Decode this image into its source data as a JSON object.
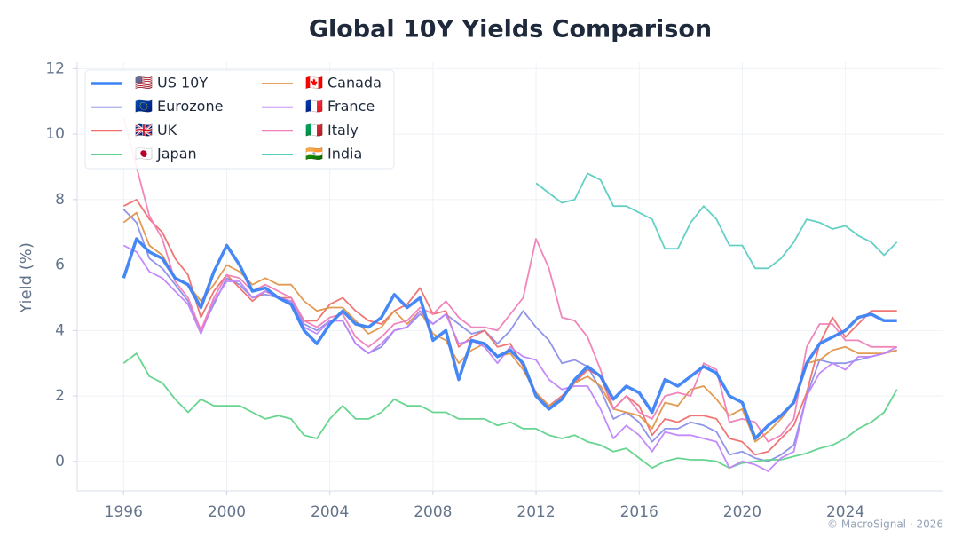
{
  "chart_data": {
    "type": "line",
    "title": "Global 10Y Yields Comparison",
    "ylabel": "Yield (%)",
    "footnote": "© MacroSignal · 2026",
    "legend": "upper-left",
    "grid": true,
    "xlim": [
      1994.2,
      2027.8
    ],
    "ylim": [
      -0.9,
      12.2
    ],
    "xticks": [
      1996,
      2000,
      2004,
      2008,
      2012,
      2016,
      2020,
      2024
    ],
    "yticks": [
      0,
      2,
      4,
      6,
      8,
      10,
      12
    ],
    "x": [
      1996,
      1996.5,
      1997,
      1997.5,
      1998,
      1998.5,
      1999,
      1999.5,
      2000,
      2000.5,
      2001,
      2001.5,
      2002,
      2002.5,
      2003,
      2003.5,
      2004,
      2004.5,
      2005,
      2005.5,
      2006,
      2006.5,
      2007,
      2007.5,
      2008,
      2008.5,
      2009,
      2009.5,
      2010,
      2010.5,
      2011,
      2011.5,
      2012,
      2012.5,
      2013,
      2013.5,
      2014,
      2014.5,
      2015,
      2015.5,
      2016,
      2016.5,
      2017,
      2017.5,
      2018,
      2018.5,
      2019,
      2019.5,
      2020,
      2020.5,
      2021,
      2021.5,
      2022,
      2022.5,
      2023,
      2023.5,
      2024,
      2024.5,
      2025,
      2025.5,
      2026
    ],
    "series": [
      {
        "name": "🇺🇸 US 10Y",
        "color": "#3b82f6",
        "width": 3.5,
        "values": [
          5.6,
          6.8,
          6.4,
          6.2,
          5.6,
          5.4,
          4.7,
          5.8,
          6.6,
          6.0,
          5.2,
          5.3,
          5.0,
          4.8,
          4.0,
          3.6,
          4.2,
          4.6,
          4.2,
          4.1,
          4.4,
          5.1,
          4.7,
          5.0,
          3.7,
          4.0,
          2.5,
          3.7,
          3.6,
          3.2,
          3.4,
          3.0,
          2.0,
          1.6,
          1.9,
          2.5,
          2.9,
          2.6,
          1.9,
          2.3,
          2.1,
          1.5,
          2.5,
          2.3,
          2.6,
          2.9,
          2.7,
          2.0,
          1.8,
          0.7,
          1.1,
          1.4,
          1.8,
          3.0,
          3.6,
          3.8,
          4.0,
          4.4,
          4.5,
          4.3,
          4.3
        ]
      },
      {
        "name": "🇪🇺 Eurozone",
        "color": "#8b8fe8",
        "width": 1.8,
        "values": [
          7.7,
          7.3,
          6.2,
          5.9,
          5.4,
          4.9,
          4.0,
          4.8,
          5.6,
          5.4,
          5.0,
          5.1,
          5.0,
          4.9,
          4.2,
          4.0,
          4.3,
          4.3,
          3.6,
          3.3,
          3.5,
          4.0,
          4.1,
          4.5,
          4.2,
          4.5,
          4.2,
          3.9,
          4.0,
          3.6,
          4.0,
          4.6,
          4.1,
          3.7,
          3.0,
          3.1,
          2.9,
          2.2,
          1.3,
          1.5,
          1.2,
          0.6,
          1.0,
          1.0,
          1.2,
          1.1,
          0.9,
          0.2,
          0.3,
          0.1,
          0.0,
          0.2,
          0.5,
          2.0,
          3.1,
          3.0,
          3.0,
          3.1,
          3.2,
          3.3,
          3.4
        ]
      },
      {
        "name": "🇬🇧 UK",
        "color": "#ef6f6f",
        "width": 1.8,
        "values": [
          7.8,
          8.0,
          7.4,
          7.0,
          6.2,
          5.7,
          4.4,
          5.2,
          5.7,
          5.3,
          4.9,
          5.2,
          5.0,
          5.0,
          4.3,
          4.3,
          4.8,
          5.0,
          4.6,
          4.3,
          4.2,
          4.6,
          4.8,
          5.3,
          4.5,
          4.6,
          3.5,
          3.8,
          4.0,
          3.5,
          3.6,
          2.9,
          2.1,
          1.7,
          2.0,
          2.4,
          2.8,
          2.6,
          1.6,
          2.0,
          1.7,
          0.8,
          1.3,
          1.2,
          1.4,
          1.4,
          1.3,
          0.7,
          0.6,
          0.2,
          0.3,
          0.7,
          1.1,
          2.1,
          3.6,
          4.4,
          3.8,
          4.2,
          4.6,
          4.6,
          4.6
        ]
      },
      {
        "name": "🇯🇵 Japan",
        "color": "#5fd38a",
        "width": 1.8,
        "values": [
          3.0,
          3.3,
          2.6,
          2.4,
          1.9,
          1.5,
          1.9,
          1.7,
          1.7,
          1.7,
          1.5,
          1.3,
          1.4,
          1.3,
          0.8,
          0.7,
          1.3,
          1.7,
          1.3,
          1.3,
          1.5,
          1.9,
          1.7,
          1.7,
          1.5,
          1.5,
          1.3,
          1.3,
          1.3,
          1.1,
          1.2,
          1.0,
          1.0,
          0.8,
          0.7,
          0.8,
          0.6,
          0.5,
          0.3,
          0.4,
          0.1,
          -0.2,
          0.0,
          0.1,
          0.05,
          0.05,
          0.0,
          -0.2,
          -0.05,
          0.0,
          0.05,
          0.05,
          0.15,
          0.25,
          0.4,
          0.5,
          0.7,
          1.0,
          1.2,
          1.5,
          2.2
        ]
      },
      {
        "name": "🇨🇦 Canada",
        "color": "#e0954a",
        "width": 1.8,
        "values": [
          7.3,
          7.6,
          6.6,
          6.3,
          5.6,
          5.4,
          4.9,
          5.4,
          6.0,
          5.8,
          5.4,
          5.6,
          5.4,
          5.4,
          4.9,
          4.6,
          4.7,
          4.7,
          4.3,
          3.9,
          4.1,
          4.6,
          4.2,
          4.6,
          3.9,
          3.7,
          3.0,
          3.4,
          3.6,
          3.2,
          3.3,
          2.8,
          2.1,
          1.7,
          1.9,
          2.4,
          2.6,
          2.3,
          1.6,
          1.5,
          1.4,
          1.0,
          1.8,
          1.7,
          2.2,
          2.3,
          1.9,
          1.4,
          1.6,
          0.6,
          0.9,
          1.3,
          1.8,
          3.0,
          3.1,
          3.4,
          3.5,
          3.3,
          3.3,
          3.3,
          3.4
        ]
      },
      {
        "name": "🇫🇷 France",
        "color": "#c084fc",
        "width": 1.8,
        "values": [
          6.6,
          6.4,
          5.8,
          5.6,
          5.2,
          4.8,
          3.9,
          4.9,
          5.5,
          5.5,
          5.0,
          5.2,
          5.0,
          4.9,
          4.1,
          3.9,
          4.3,
          4.3,
          3.6,
          3.3,
          3.6,
          4.0,
          4.1,
          4.6,
          4.2,
          4.5,
          3.6,
          3.7,
          3.5,
          3.0,
          3.5,
          3.2,
          3.1,
          2.5,
          2.2,
          2.3,
          2.3,
          1.6,
          0.7,
          1.1,
          0.8,
          0.3,
          0.9,
          0.8,
          0.8,
          0.7,
          0.6,
          -0.2,
          0.0,
          -0.1,
          -0.3,
          0.1,
          0.3,
          2.0,
          2.7,
          3.0,
          2.8,
          3.2,
          3.2,
          3.3,
          3.5
        ]
      },
      {
        "name": "🇮🇹 Italy",
        "color": "#ef7fb8",
        "width": 1.8,
        "values": [
          10.5,
          9.0,
          7.5,
          6.8,
          5.5,
          5.0,
          4.0,
          5.0,
          5.7,
          5.6,
          5.2,
          5.4,
          5.2,
          5.0,
          4.3,
          4.1,
          4.4,
          4.5,
          3.8,
          3.5,
          3.8,
          4.2,
          4.3,
          4.7,
          4.5,
          4.9,
          4.4,
          4.1,
          4.1,
          4.0,
          4.5,
          5.0,
          6.8,
          5.9,
          4.4,
          4.3,
          3.8,
          2.8,
          1.6,
          2.0,
          1.5,
          1.3,
          2.0,
          2.1,
          2.0,
          3.0,
          2.8,
          1.2,
          1.3,
          1.2,
          0.6,
          0.8,
          1.3,
          3.5,
          4.2,
          4.2,
          3.7,
          3.7,
          3.5,
          3.5,
          3.5
        ]
      },
      {
        "name": "🇮🇳 India",
        "color": "#5ccdc2",
        "width": 1.8,
        "values": [
          null,
          null,
          null,
          null,
          null,
          null,
          null,
          null,
          null,
          null,
          null,
          null,
          null,
          null,
          null,
          null,
          null,
          null,
          null,
          null,
          null,
          null,
          null,
          null,
          null,
          null,
          null,
          null,
          null,
          null,
          null,
          null,
          8.5,
          8.2,
          7.9,
          8.0,
          8.8,
          8.6,
          7.8,
          7.8,
          7.6,
          7.4,
          6.5,
          6.5,
          7.3,
          7.8,
          7.4,
          6.6,
          6.6,
          5.9,
          5.9,
          6.2,
          6.7,
          7.4,
          7.3,
          7.1,
          7.2,
          6.9,
          6.7,
          6.3,
          6.7
        ]
      }
    ]
  }
}
